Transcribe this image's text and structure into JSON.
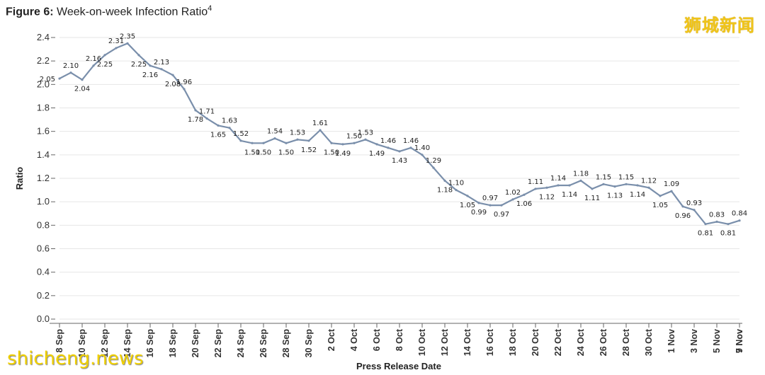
{
  "header": {
    "figure_label": "Figure 6:",
    "title": "Week-on-week Infection Ratio",
    "superscript": "4"
  },
  "logo_text": "狮城新闻",
  "watermark_text": "shicheng.news",
  "colors": {
    "line": "#7a8fab",
    "grid": "#e6e6e6",
    "logo": "#f0c419"
  },
  "chart_data": {
    "type": "line",
    "title": "Week-on-week Infection Ratio",
    "xlabel": "Press Release Date",
    "ylabel": "Ratio",
    "ylim": [
      0.0,
      2.4
    ],
    "yticks": [
      "0.0",
      "0.2",
      "0.4",
      "0.6",
      "0.8",
      "1.0",
      "1.2",
      "1.4",
      "1.6",
      "1.8",
      "2.0",
      "2.2",
      "2.4"
    ],
    "xtick_labels": [
      "8 Sep",
      "10 Sep",
      "12 Sep",
      "14 Sep",
      "16 Sep",
      "18 Sep",
      "20 Sep",
      "22 Sep",
      "24 Sep",
      "26 Sep",
      "28 Sep",
      "30 Sep",
      "2 Oct",
      "4 Oct",
      "6 Oct",
      "8 Oct",
      "10 Oct",
      "12 Oct",
      "14 Oct",
      "16 Oct",
      "18 Oct",
      "20 Oct",
      "22 Oct",
      "24 Oct",
      "26 Oct",
      "28 Oct",
      "30 Oct",
      "1 Nov",
      "3 Nov",
      "5 Nov",
      "7 Nov",
      "9 Nov"
    ],
    "series": [
      {
        "name": "Week-on-week Infection Ratio",
        "values": [
          2.05,
          2.1,
          2.04,
          2.16,
          2.25,
          2.31,
          2.35,
          2.25,
          2.16,
          2.13,
          2.08,
          1.96,
          1.78,
          1.71,
          1.65,
          1.63,
          1.52,
          1.5,
          1.5,
          1.54,
          1.5,
          1.53,
          1.52,
          1.61,
          1.5,
          1.49,
          1.5,
          1.53,
          1.49,
          1.46,
          1.43,
          1.46,
          1.4,
          1.29,
          1.18,
          1.1,
          1.05,
          0.99,
          0.97,
          0.97,
          1.02,
          1.06,
          1.11,
          1.12,
          1.14,
          1.14,
          1.18,
          1.11,
          1.15,
          1.13,
          1.15,
          1.14,
          1.12,
          1.05,
          1.09,
          0.96,
          0.93,
          0.81,
          0.83,
          0.81,
          0.84
        ],
        "labels": [
          "2.05",
          "2.10",
          "2.04",
          "2.16",
          "2.25",
          "2.31",
          "2.35",
          "2.25",
          "2.16",
          "2.13",
          "2.08",
          "1.96",
          "1.78",
          "1.71",
          "1.65",
          "1.63",
          "1.52",
          "1.50",
          "1.50",
          "1.54",
          "1.50",
          "1.53",
          "1.52",
          "1.61",
          "1.50",
          "1.49",
          "1.50",
          "1.53",
          "1.49",
          "1.46",
          "1.43",
          "1.46",
          "1.40",
          "1.29",
          "1.18",
          "1.10",
          "1.05",
          "0.99",
          "0.97",
          "0.97",
          "1.02",
          "1.06",
          "1.11",
          "1.12",
          "1.14",
          "1.14",
          "1.18",
          "1.11",
          "1.15",
          "1.13",
          "1.15",
          "1.14",
          "1.12",
          "1.05",
          "1.09",
          "0.96",
          "0.93",
          "0.81",
          "0.83",
          "0.81",
          "0.84"
        ],
        "label_position": [
          "left",
          "above",
          "below",
          "above",
          "below",
          "above",
          "above",
          "below",
          "below",
          "above",
          "below",
          "above",
          "below",
          "above",
          "below",
          "above",
          "above",
          "below",
          "below",
          "above",
          "below",
          "above",
          "below",
          "above",
          "below",
          "below",
          "above",
          "above",
          "below",
          "above",
          "below",
          "above",
          "above",
          "above",
          "below",
          "above",
          "below",
          "below",
          "above",
          "below",
          "above",
          "below",
          "above",
          "below",
          "above",
          "below",
          "above",
          "below",
          "above",
          "below",
          "above",
          "below",
          "above",
          "below",
          "above",
          "below",
          "above",
          "below",
          "above",
          "below",
          "above"
        ]
      }
    ]
  }
}
